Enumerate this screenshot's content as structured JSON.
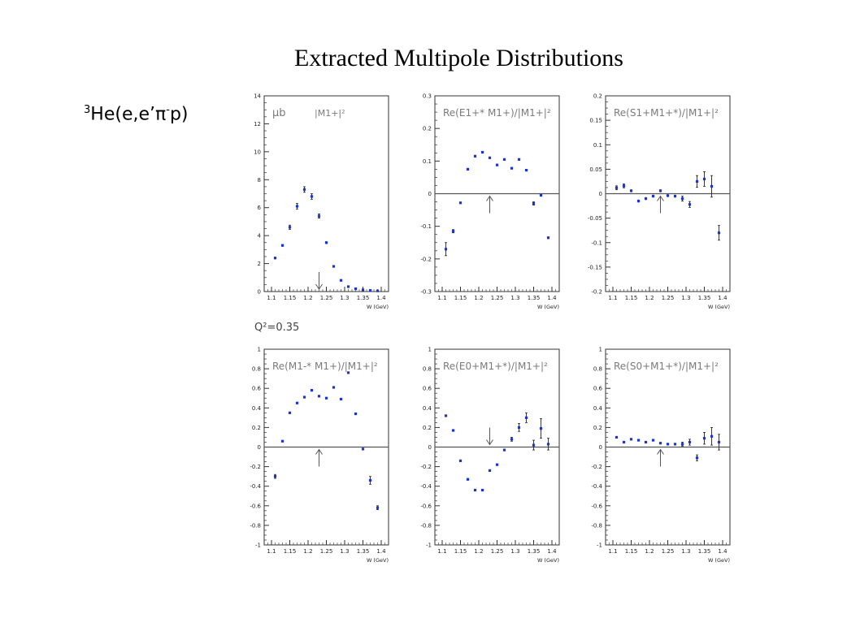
{
  "title": "Extracted Multipole Distributions",
  "reaction": {
    "pre": "3",
    "main": "He(e,e’π",
    "minus": "-",
    "end": "p)"
  },
  "q2_label": "Q²=0.35",
  "colors": {
    "points": "#1a33d6",
    "axis": "#333333",
    "tick_text": "#222222",
    "label": "#7a7a7a"
  },
  "chart_data": [
    {
      "type": "scatter",
      "label_prefix": "μb",
      "label": "|M1+|²",
      "x_axis_title": "W (GeV)",
      "xlim": [
        1.08,
        1.42
      ],
      "ylim": [
        0,
        14
      ],
      "xticks": [
        "1.1",
        "1.15",
        "1.2",
        "1.25",
        "1.3",
        "1.35",
        "1.4"
      ],
      "yticks": [
        "0",
        "2",
        "4",
        "6",
        "8",
        "10",
        "12",
        "14"
      ],
      "arrow": {
        "x": 1.23,
        "direction": "down"
      },
      "points": [
        {
          "x": 1.11,
          "y": 2.4,
          "e": 0.1
        },
        {
          "x": 1.13,
          "y": 3.3,
          "e": 0.1
        },
        {
          "x": 1.15,
          "y": 4.6,
          "e": 0.15
        },
        {
          "x": 1.17,
          "y": 6.1,
          "e": 0.2
        },
        {
          "x": 1.19,
          "y": 7.3,
          "e": 0.2
        },
        {
          "x": 1.21,
          "y": 6.8,
          "e": 0.2
        },
        {
          "x": 1.23,
          "y": 5.4,
          "e": 0.15
        },
        {
          "x": 1.25,
          "y": 3.5,
          "e": 0.1
        },
        {
          "x": 1.27,
          "y": 1.8,
          "e": 0.05
        },
        {
          "x": 1.29,
          "y": 0.8,
          "e": 0.05
        },
        {
          "x": 1.31,
          "y": 0.35,
          "e": 0.03
        },
        {
          "x": 1.33,
          "y": 0.2,
          "e": 0.03
        },
        {
          "x": 1.35,
          "y": 0.12,
          "e": 0.03
        },
        {
          "x": 1.37,
          "y": 0.08,
          "e": 0.03
        },
        {
          "x": 1.39,
          "y": 0.05,
          "e": 0.03
        }
      ]
    },
    {
      "type": "scatter",
      "label": "Re(E1+* M1+)/|M1+|²",
      "x_axis_title": "W (GeV)",
      "xlim": [
        1.08,
        1.42
      ],
      "ylim": [
        -0.3,
        0.3
      ],
      "xticks": [
        "1.1",
        "1.15",
        "1.2",
        "1.25",
        "1.3",
        "1.35",
        "1.4"
      ],
      "yticks": [
        "-0.3",
        "-0.2",
        "-0.1",
        "0",
        "0.1",
        "0.2",
        "0.3"
      ],
      "zero_line": true,
      "arrow": {
        "x": 1.23,
        "direction": "up"
      },
      "points": [
        {
          "x": 1.11,
          "y": -0.17,
          "e": 0.02
        },
        {
          "x": 1.13,
          "y": -0.115,
          "e": 0.005
        },
        {
          "x": 1.15,
          "y": -0.028,
          "e": 0.003
        },
        {
          "x": 1.17,
          "y": 0.075,
          "e": 0.003
        },
        {
          "x": 1.19,
          "y": 0.115,
          "e": 0.003
        },
        {
          "x": 1.21,
          "y": 0.127,
          "e": 0.003
        },
        {
          "x": 1.23,
          "y": 0.11,
          "e": 0.003
        },
        {
          "x": 1.25,
          "y": 0.088,
          "e": 0.003
        },
        {
          "x": 1.27,
          "y": 0.105,
          "e": 0.003
        },
        {
          "x": 1.29,
          "y": 0.078,
          "e": 0.003
        },
        {
          "x": 1.31,
          "y": 0.105,
          "e": 0.003
        },
        {
          "x": 1.33,
          "y": 0.072,
          "e": 0.003
        },
        {
          "x": 1.35,
          "y": -0.03,
          "e": 0.005
        },
        {
          "x": 1.37,
          "y": -0.005,
          "e": 0.003
        },
        {
          "x": 1.39,
          "y": -0.135,
          "e": 0.004
        }
      ]
    },
    {
      "type": "scatter",
      "label": "Re(S1+M1+*)/|M1+|²",
      "x_axis_title": "W (GeV)",
      "xlim": [
        1.08,
        1.42
      ],
      "ylim": [
        -0.2,
        0.2
      ],
      "xticks": [
        "1.1",
        "1.15",
        "1.2",
        "1.25",
        "1.3",
        "1.35",
        "1.4"
      ],
      "yticks": [
        "-0.2",
        "-0.15",
        "-0.1",
        "-0.05",
        "0",
        "0.05",
        "0.1",
        "0.15",
        "0.2"
      ],
      "zero_line": true,
      "arrow": {
        "x": 1.23,
        "direction": "up"
      },
      "points": [
        {
          "x": 1.11,
          "y": 0.012,
          "e": 0.004
        },
        {
          "x": 1.13,
          "y": 0.016,
          "e": 0.004
        },
        {
          "x": 1.15,
          "y": 0.006,
          "e": 0.003
        },
        {
          "x": 1.17,
          "y": -0.015,
          "e": 0.003
        },
        {
          "x": 1.19,
          "y": -0.01,
          "e": 0.003
        },
        {
          "x": 1.21,
          "y": -0.005,
          "e": 0.003
        },
        {
          "x": 1.23,
          "y": 0.006,
          "e": 0.003
        },
        {
          "x": 1.25,
          "y": -0.004,
          "e": 0.003
        },
        {
          "x": 1.27,
          "y": -0.005,
          "e": 0.003
        },
        {
          "x": 1.29,
          "y": -0.01,
          "e": 0.005
        },
        {
          "x": 1.31,
          "y": -0.022,
          "e": 0.006
        },
        {
          "x": 1.33,
          "y": 0.025,
          "e": 0.012
        },
        {
          "x": 1.35,
          "y": 0.03,
          "e": 0.015
        },
        {
          "x": 1.37,
          "y": 0.015,
          "e": 0.022
        },
        {
          "x": 1.39,
          "y": -0.08,
          "e": 0.015
        }
      ]
    },
    {
      "type": "scatter",
      "label": "Re(M1-* M1+)/|M1+|²",
      "x_axis_title": "W (GeV)",
      "xlim": [
        1.08,
        1.42
      ],
      "ylim": [
        -1,
        1
      ],
      "xticks": [
        "1.1",
        "1.15",
        "1.2",
        "1.25",
        "1.3",
        "1.35",
        "1.4"
      ],
      "yticks": [
        "-1",
        "-0.8",
        "-0.6",
        "-0.4",
        "-0.2",
        "0",
        "0.2",
        "0.4",
        "0.6",
        "0.8",
        "1"
      ],
      "zero_line": true,
      "arrow": {
        "x": 1.23,
        "direction": "up"
      },
      "points": [
        {
          "x": 1.11,
          "y": -0.3,
          "e": 0.02
        },
        {
          "x": 1.13,
          "y": 0.06,
          "e": 0.01
        },
        {
          "x": 1.15,
          "y": 0.35,
          "e": 0.01
        },
        {
          "x": 1.17,
          "y": 0.45,
          "e": 0.01
        },
        {
          "x": 1.19,
          "y": 0.51,
          "e": 0.01
        },
        {
          "x": 1.21,
          "y": 0.58,
          "e": 0.01
        },
        {
          "x": 1.23,
          "y": 0.52,
          "e": 0.01
        },
        {
          "x": 1.25,
          "y": 0.5,
          "e": 0.01
        },
        {
          "x": 1.27,
          "y": 0.61,
          "e": 0.01
        },
        {
          "x": 1.29,
          "y": 0.49,
          "e": 0.01
        },
        {
          "x": 1.31,
          "y": 0.76,
          "e": 0.01
        },
        {
          "x": 1.33,
          "y": 0.34,
          "e": 0.01
        },
        {
          "x": 1.35,
          "y": -0.02,
          "e": 0.01
        },
        {
          "x": 1.37,
          "y": -0.34,
          "e": 0.04
        },
        {
          "x": 1.39,
          "y": -0.62,
          "e": 0.02
        }
      ]
    },
    {
      "type": "scatter",
      "label": "Re(E0+M1+*)/|M1+|²",
      "x_axis_title": "W (GeV)",
      "xlim": [
        1.08,
        1.42
      ],
      "ylim": [
        -1,
        1
      ],
      "xticks": [
        "1.1",
        "1.15",
        "1.2",
        "1.25",
        "1.3",
        "1.35",
        "1.4"
      ],
      "yticks": [
        "-1",
        "-0.8",
        "-0.6",
        "-0.4",
        "-0.2",
        "0",
        "0.2",
        "0.4",
        "0.6",
        "0.8",
        "1"
      ],
      "zero_line": true,
      "arrow": {
        "x": 1.23,
        "direction": "down"
      },
      "points": [
        {
          "x": 1.11,
          "y": 0.32,
          "e": 0.01
        },
        {
          "x": 1.13,
          "y": 0.17,
          "e": 0.01
        },
        {
          "x": 1.15,
          "y": -0.14,
          "e": 0.01
        },
        {
          "x": 1.17,
          "y": -0.33,
          "e": 0.01
        },
        {
          "x": 1.19,
          "y": -0.44,
          "e": 0.01
        },
        {
          "x": 1.21,
          "y": -0.44,
          "e": 0.01
        },
        {
          "x": 1.23,
          "y": -0.24,
          "e": 0.01
        },
        {
          "x": 1.25,
          "y": -0.18,
          "e": 0.01
        },
        {
          "x": 1.27,
          "y": -0.03,
          "e": 0.01
        },
        {
          "x": 1.29,
          "y": 0.08,
          "e": 0.02
        },
        {
          "x": 1.31,
          "y": 0.2,
          "e": 0.04
        },
        {
          "x": 1.33,
          "y": 0.3,
          "e": 0.05
        },
        {
          "x": 1.35,
          "y": 0.02,
          "e": 0.05
        },
        {
          "x": 1.37,
          "y": 0.19,
          "e": 0.1
        },
        {
          "x": 1.39,
          "y": 0.03,
          "e": 0.06
        }
      ]
    },
    {
      "type": "scatter",
      "label": "Re(S0+M1+*)/|M1+|²",
      "x_axis_title": "W (GeV)",
      "xlim": [
        1.08,
        1.42
      ],
      "ylim": [
        -1,
        1
      ],
      "xticks": [
        "1.1",
        "1.15",
        "1.2",
        "1.25",
        "1.3",
        "1.35",
        "1.4"
      ],
      "yticks": [
        "-1",
        "-0.8",
        "-0.6",
        "-0.4",
        "-0.2",
        "0",
        "0.2",
        "0.4",
        "0.6",
        "0.8",
        "1"
      ],
      "zero_line": true,
      "arrow": {
        "x": 1.23,
        "direction": "up"
      },
      "points": [
        {
          "x": 1.11,
          "y": 0.1,
          "e": 0.01
        },
        {
          "x": 1.13,
          "y": 0.05,
          "e": 0.01
        },
        {
          "x": 1.15,
          "y": 0.08,
          "e": 0.01
        },
        {
          "x": 1.17,
          "y": 0.07,
          "e": 0.01
        },
        {
          "x": 1.19,
          "y": 0.05,
          "e": 0.01
        },
        {
          "x": 1.21,
          "y": 0.07,
          "e": 0.01
        },
        {
          "x": 1.23,
          "y": 0.04,
          "e": 0.01
        },
        {
          "x": 1.25,
          "y": 0.03,
          "e": 0.01
        },
        {
          "x": 1.27,
          "y": 0.03,
          "e": 0.01
        },
        {
          "x": 1.29,
          "y": 0.03,
          "e": 0.02
        },
        {
          "x": 1.31,
          "y": 0.05,
          "e": 0.03
        },
        {
          "x": 1.33,
          "y": -0.11,
          "e": 0.03
        },
        {
          "x": 1.35,
          "y": 0.09,
          "e": 0.06
        },
        {
          "x": 1.37,
          "y": 0.11,
          "e": 0.09
        },
        {
          "x": 1.39,
          "y": 0.05,
          "e": 0.08
        }
      ]
    }
  ]
}
